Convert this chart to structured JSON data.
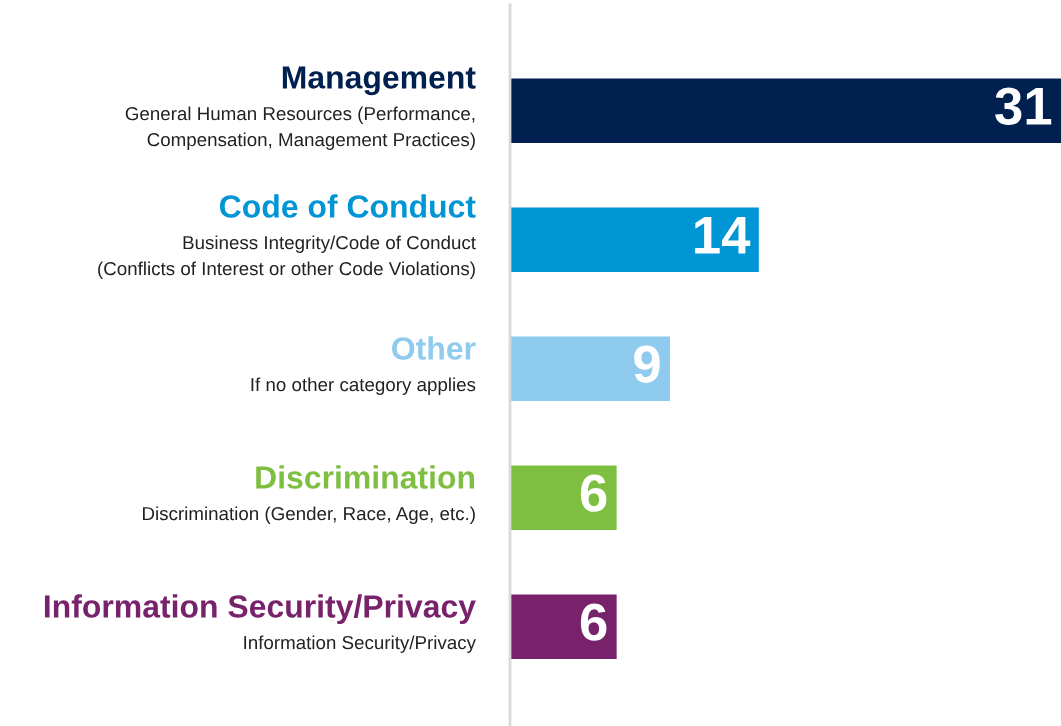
{
  "chart_data": {
    "type": "bar",
    "orientation": "horizontal",
    "categories": [
      "Management\nGeneral Human Resources (Performance,\nCompensation, Management Practices)",
      "Code of Conduct\nBusiness Integrity/Code of Conduct\n(Conflicts of Interest or other Code Violations)",
      "Other\nIf no other category applies",
      "Discrimination\nDiscrimination (Gender, Race, Age, etc.)",
      "Information Security/Privacy\nInformation Security/Privacy"
    ],
    "values": [
      31,
      14,
      9,
      6,
      6
    ],
    "colors": [
      "#002050",
      "#0096d6",
      "#8ecbee",
      "#7ebf42",
      "#77226b"
    ],
    "xlim": [
      0,
      31
    ],
    "data_labels": true,
    "tick_labels": "y"
  }
}
